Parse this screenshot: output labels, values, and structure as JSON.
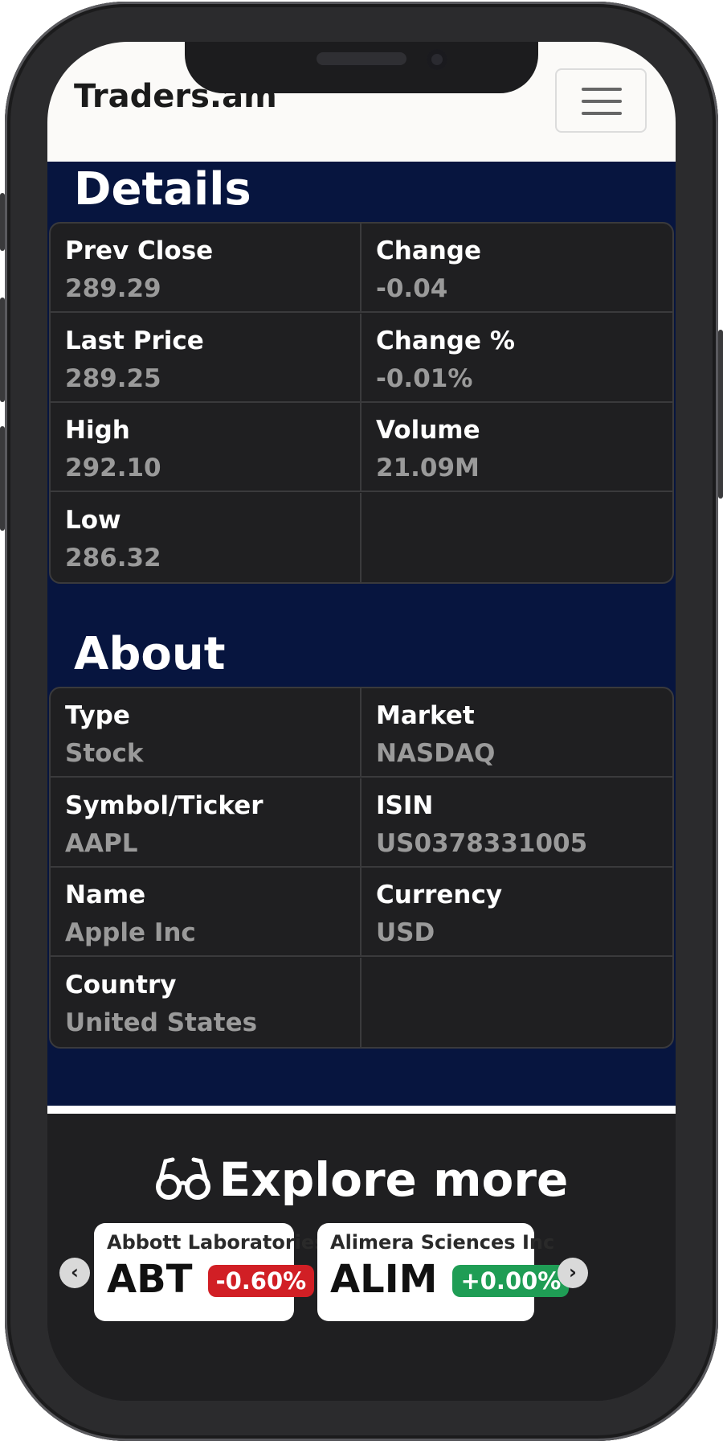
{
  "brand": "Traders.am",
  "details": {
    "title": "Details",
    "rows": [
      {
        "left_label": "Prev Close",
        "left_value": "289.29",
        "right_label": "Change",
        "right_value": "-0.04"
      },
      {
        "left_label": "Last Price",
        "left_value": "289.25",
        "right_label": "Change %",
        "right_value": "-0.01%"
      },
      {
        "left_label": "High",
        "left_value": "292.10",
        "right_label": "Volume",
        "right_value": "21.09M"
      },
      {
        "left_label": "Low",
        "left_value": "286.32",
        "right_label": "",
        "right_value": ""
      }
    ]
  },
  "about": {
    "title": "About",
    "rows": [
      {
        "left_label": "Type",
        "left_value": "Stock",
        "right_label": "Market",
        "right_value": "NASDAQ"
      },
      {
        "left_label": "Symbol/Ticker",
        "left_value": "AAPL",
        "right_label": "ISIN",
        "right_value": "US0378331005"
      },
      {
        "left_label": "Name",
        "left_value": "Apple Inc",
        "right_label": "Currency",
        "right_value": "USD"
      },
      {
        "left_label": "Country",
        "left_value": "United States",
        "right_label": "",
        "right_value": ""
      }
    ]
  },
  "explore": {
    "title": "Explore more",
    "icon": "glasses-icon",
    "prev_icon": "chevron-left-icon",
    "next_icon": "chevron-right-icon",
    "cards": [
      {
        "company": "Abbott Laboratories",
        "ticker": "ABT",
        "change": "-0.60%",
        "color": "#d11f25"
      },
      {
        "company": "Alimera Sciences Inc",
        "ticker": "ALIM",
        "change": "+0.00%",
        "color": "#1f9d55"
      }
    ]
  },
  "colors": {
    "navy": "#07153f",
    "dark": "#1f1f21",
    "navbar": "#fbfaf8"
  }
}
